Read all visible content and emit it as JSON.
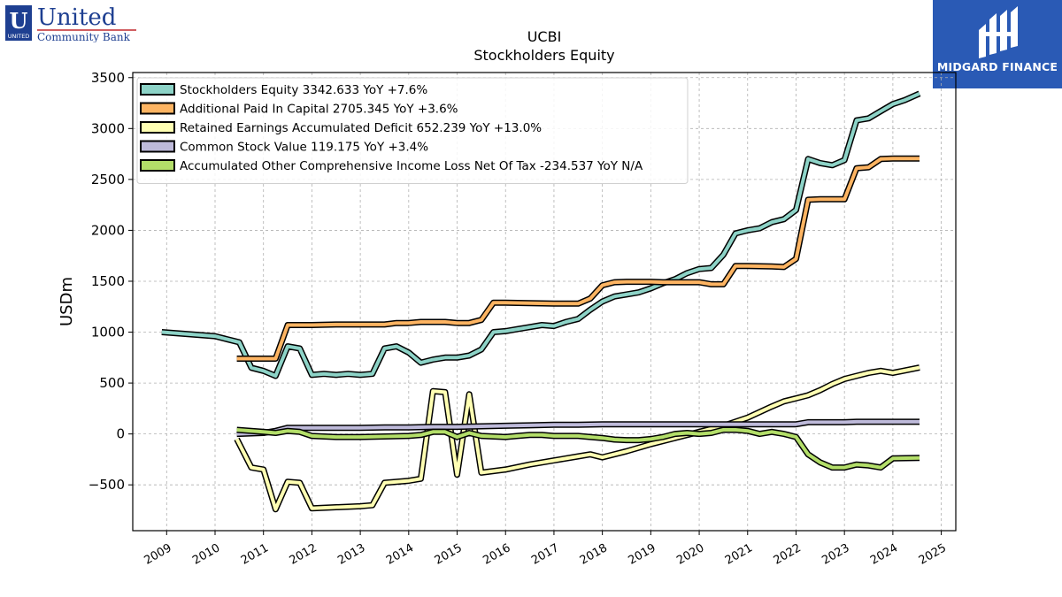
{
  "branding": {
    "company_logo_line1": "United",
    "company_logo_line2": "Community Bank",
    "company_logo_badge": "UNITED",
    "watermark_text": "MIDGARD FINANCE",
    "watermark_color": "#2a5ab5"
  },
  "chart_data": {
    "type": "line",
    "title": "UCBI",
    "subtitle": "Stockholders  Equity",
    "ylabel": "USDm",
    "xlabel": "",
    "xlim": [
      2008.3,
      2025.3
    ],
    "ylim": [
      -950,
      3550
    ],
    "yticks": [
      -500,
      0,
      500,
      1000,
      1500,
      2000,
      2500,
      3000,
      3500
    ],
    "ytick_labels": [
      "−500",
      "0",
      "500",
      "1000",
      "1500",
      "2000",
      "2500",
      "3000",
      "3500"
    ],
    "xticks": [
      2009,
      2010,
      2011,
      2012,
      2013,
      2014,
      2015,
      2016,
      2017,
      2018,
      2019,
      2020,
      2021,
      2022,
      2023,
      2024,
      2025
    ],
    "xtick_labels": [
      "2009",
      "2010",
      "2011",
      "2012",
      "2013",
      "2014",
      "2015",
      "2016",
      "2017",
      "2018",
      "2019",
      "2020",
      "2021",
      "2022",
      "2023",
      "2024",
      "2025"
    ],
    "grid": true,
    "legend_position": "top-left",
    "series": [
      {
        "name": "Stockholders Equity",
        "legend_label": "Stockholders Equity  3342.633 YoY +7.6%",
        "color": "#8dd3c7",
        "x": [
          2008.9,
          2010.0,
          2010.25,
          2010.5,
          2010.75,
          2011.0,
          2011.25,
          2011.5,
          2011.75,
          2012.0,
          2012.25,
          2012.5,
          2012.75,
          2013.0,
          2013.25,
          2013.5,
          2013.75,
          2014.0,
          2014.25,
          2014.5,
          2014.75,
          2015.0,
          2015.25,
          2015.5,
          2015.75,
          2016.0,
          2016.25,
          2016.5,
          2016.75,
          2017.0,
          2017.25,
          2017.5,
          2017.75,
          2018.0,
          2018.25,
          2018.5,
          2018.75,
          2019.0,
          2019.25,
          2019.5,
          2019.75,
          2020.0,
          2020.25,
          2020.5,
          2020.75,
          2021.0,
          2021.25,
          2021.5,
          2021.75,
          2022.0,
          2022.25,
          2022.5,
          2022.75,
          2023.0,
          2023.25,
          2023.5,
          2023.75,
          2024.0,
          2024.25,
          2024.55
        ],
        "values": [
          1000,
          960,
          930,
          900,
          650,
          620,
          570,
          860,
          840,
          580,
          590,
          580,
          590,
          580,
          590,
          840,
          860,
          800,
          700,
          730,
          750,
          750,
          770,
          830,
          1000,
          1010,
          1030,
          1050,
          1070,
          1060,
          1100,
          1130,
          1220,
          1300,
          1350,
          1370,
          1390,
          1430,
          1480,
          1520,
          1580,
          1620,
          1630,
          1760,
          1970,
          2000,
          2020,
          2080,
          2110,
          2200,
          2700,
          2660,
          2640,
          2690,
          3080,
          3100,
          3170,
          3240,
          3280,
          3343
        ]
      },
      {
        "name": "Additional Paid In Capital",
        "legend_label": "Additional Paid In Capital  2705.345 YoY +3.6%",
        "color": "#fdb462",
        "x": [
          2010.45,
          2011.25,
          2011.5,
          2012.0,
          2012.5,
          2013.0,
          2013.5,
          2013.75,
          2014.0,
          2014.25,
          2014.5,
          2014.75,
          2015.0,
          2015.25,
          2015.5,
          2015.75,
          2016.0,
          2016.5,
          2017.0,
          2017.25,
          2017.5,
          2017.75,
          2018.0,
          2018.25,
          2018.5,
          2019.0,
          2019.25,
          2019.5,
          2019.75,
          2020.0,
          2020.25,
          2020.5,
          2020.75,
          2021.0,
          2021.5,
          2021.75,
          2022.0,
          2022.25,
          2022.5,
          2022.75,
          2023.0,
          2023.25,
          2023.5,
          2023.75,
          2024.0,
          2024.55
        ],
        "values": [
          740,
          740,
          1070,
          1070,
          1075,
          1075,
          1075,
          1090,
          1090,
          1100,
          1100,
          1100,
          1090,
          1090,
          1120,
          1290,
          1290,
          1285,
          1280,
          1280,
          1280,
          1330,
          1460,
          1490,
          1495,
          1495,
          1490,
          1490,
          1490,
          1490,
          1470,
          1470,
          1650,
          1650,
          1645,
          1640,
          1720,
          2300,
          2305,
          2305,
          2305,
          2610,
          2620,
          2700,
          2705,
          2705
        ]
      },
      {
        "name": "Retained Earnings Accumulated Deficit",
        "legend_label": "Retained Earnings Accumulated Deficit  652.239 YoY +13.0%",
        "color": "#ffffb3",
        "x": [
          2010.45,
          2010.75,
          2011.0,
          2011.25,
          2011.5,
          2011.75,
          2012.0,
          2012.5,
          2013.0,
          2013.25,
          2013.5,
          2014.0,
          2014.25,
          2014.5,
          2014.75,
          2015.0,
          2015.25,
          2015.5,
          2016.0,
          2016.5,
          2017.0,
          2017.5,
          2017.75,
          2018.0,
          2018.5,
          2019.0,
          2019.5,
          2020.0,
          2020.5,
          2021.0,
          2021.5,
          2021.75,
          2022.0,
          2022.25,
          2022.5,
          2022.75,
          2023.0,
          2023.25,
          2023.5,
          2023.75,
          2024.0,
          2024.55
        ],
        "values": [
          -50,
          -330,
          -350,
          -740,
          -470,
          -480,
          -730,
          -720,
          -710,
          -700,
          -480,
          -460,
          -440,
          420,
          410,
          -400,
          390,
          -380,
          -350,
          -300,
          -260,
          -220,
          -200,
          -230,
          -170,
          -100,
          -40,
          20,
          80,
          160,
          270,
          320,
          350,
          380,
          430,
          490,
          540,
          570,
          600,
          620,
          600,
          652
        ]
      },
      {
        "name": "Common Stock Value",
        "legend_label": "Common Stock Value  119.175 YoY +3.4%",
        "color": "#bebada",
        "x": [
          2010.45,
          2011.0,
          2011.25,
          2011.5,
          2012.5,
          2013.0,
          2013.5,
          2014.0,
          2014.5,
          2015.0,
          2015.5,
          2016.0,
          2016.5,
          2017.0,
          2017.5,
          2018.0,
          2018.5,
          2019.0,
          2019.5,
          2020.0,
          2020.5,
          2021.0,
          2021.5,
          2022.0,
          2022.25,
          2022.5,
          2023.0,
          2023.25,
          2023.5,
          2024.0,
          2024.55
        ],
        "values": [
          0,
          10,
          30,
          60,
          60,
          60,
          65,
          65,
          70,
          70,
          75,
          80,
          85,
          90,
          90,
          95,
          95,
          95,
          95,
          95,
          95,
          95,
          95,
          95,
          115,
          115,
          115,
          119,
          119,
          119,
          119
        ]
      },
      {
        "name": "Accumulated Other Comprehensive Income Loss Net Of Tax",
        "legend_label": "Accumulated Other Comprehensive Income Loss Net Of Tax  -234.537 YoY N/A",
        "color": "#b3de69",
        "x": [
          2010.45,
          2010.75,
          2011.0,
          2011.25,
          2011.5,
          2011.75,
          2012.0,
          2012.5,
          2013.0,
          2013.5,
          2014.0,
          2014.25,
          2014.5,
          2014.75,
          2015.0,
          2015.25,
          2015.5,
          2016.0,
          2016.25,
          2016.5,
          2016.75,
          2017.0,
          2017.5,
          2017.75,
          2018.0,
          2018.25,
          2018.5,
          2018.75,
          2019.0,
          2019.25,
          2019.5,
          2019.75,
          2020.0,
          2020.25,
          2020.5,
          2020.75,
          2021.0,
          2021.25,
          2021.5,
          2021.75,
          2022.0,
          2022.25,
          2022.5,
          2022.75,
          2023.0,
          2023.25,
          2023.5,
          2023.75,
          2024.0,
          2024.55
        ],
        "values": [
          40,
          30,
          20,
          10,
          30,
          20,
          -20,
          -30,
          -30,
          -25,
          -20,
          -10,
          20,
          20,
          -30,
          10,
          -20,
          -30,
          -20,
          -10,
          -10,
          -20,
          -20,
          -30,
          -40,
          -55,
          -60,
          -60,
          -50,
          -30,
          0,
          10,
          0,
          10,
          40,
          40,
          30,
          0,
          20,
          0,
          -30,
          -200,
          -280,
          -330,
          -330,
          -300,
          -310,
          -330,
          -240,
          -235
        ]
      }
    ]
  }
}
